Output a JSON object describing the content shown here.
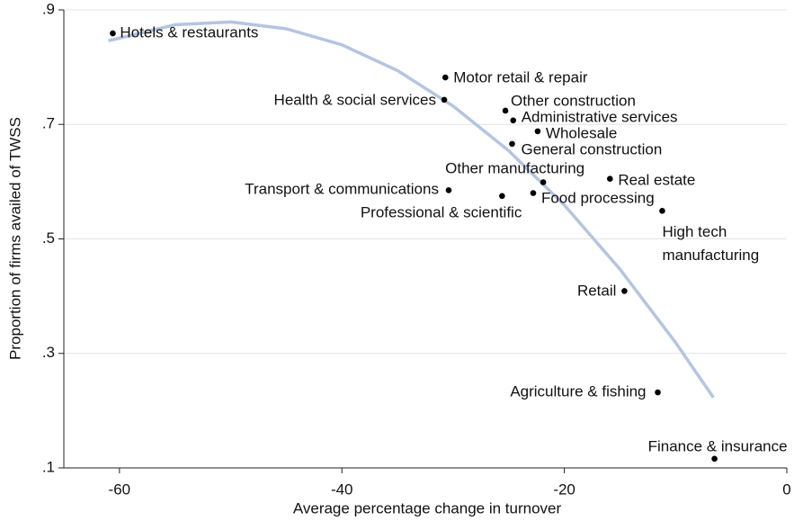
{
  "chart_data": {
    "type": "scatter",
    "x_label": "Average percentage change in turnover",
    "y_label": "Proportion of firms availed of TWSS",
    "categories": [
      "Hotels & restaurants",
      "Motor retail & repair",
      "Health & social services",
      "Other construction",
      "Administrative services",
      "Wholesale",
      "General construction",
      "Other manufacturing",
      "Real estate",
      "Transport & communications",
      "Professional & scientific",
      "Food processing",
      "High tech manufacturing",
      "Retail",
      "Agriculture & fishing",
      "Finance & insurance"
    ],
    "x": [
      -60.6,
      -30.7,
      -30.8,
      -25.3,
      -24.6,
      -22.4,
      -24.7,
      -21.9,
      -15.9,
      -30.4,
      -25.6,
      -22.8,
      -11.2,
      -14.6,
      -11.6,
      -6.5
    ],
    "values": [
      0.859,
      0.782,
      0.743,
      0.724,
      0.707,
      0.688,
      0.666,
      0.599,
      0.605,
      0.585,
      0.575,
      0.58,
      0.549,
      0.409,
      0.232,
      0.116
    ],
    "color": "#000000",
    "fit_line": {
      "color": "#b4c5e0",
      "x": [
        -61,
        -55,
        -50,
        -45,
        -40,
        -35,
        -30,
        -25,
        -20,
        -15,
        -10,
        -6.6
      ],
      "values": [
        0.846,
        0.874,
        0.879,
        0.867,
        0.839,
        0.794,
        0.732,
        0.654,
        0.559,
        0.447,
        0.319,
        0.223
      ]
    },
    "xlim": [
      -65,
      0
    ],
    "xticks": [
      -60,
      -40,
      -20,
      0
    ],
    "ylim": [
      0.1,
      0.9
    ],
    "yticks": [
      {
        "value": 0.1,
        "label": ".1"
      },
      {
        "value": 0.3,
        "label": ".3"
      },
      {
        "value": 0.5,
        "label": ".5"
      },
      {
        "value": 0.7,
        "label": ".7"
      },
      {
        "value": 0.9,
        "label": ".9"
      }
    ],
    "grid": true
  }
}
